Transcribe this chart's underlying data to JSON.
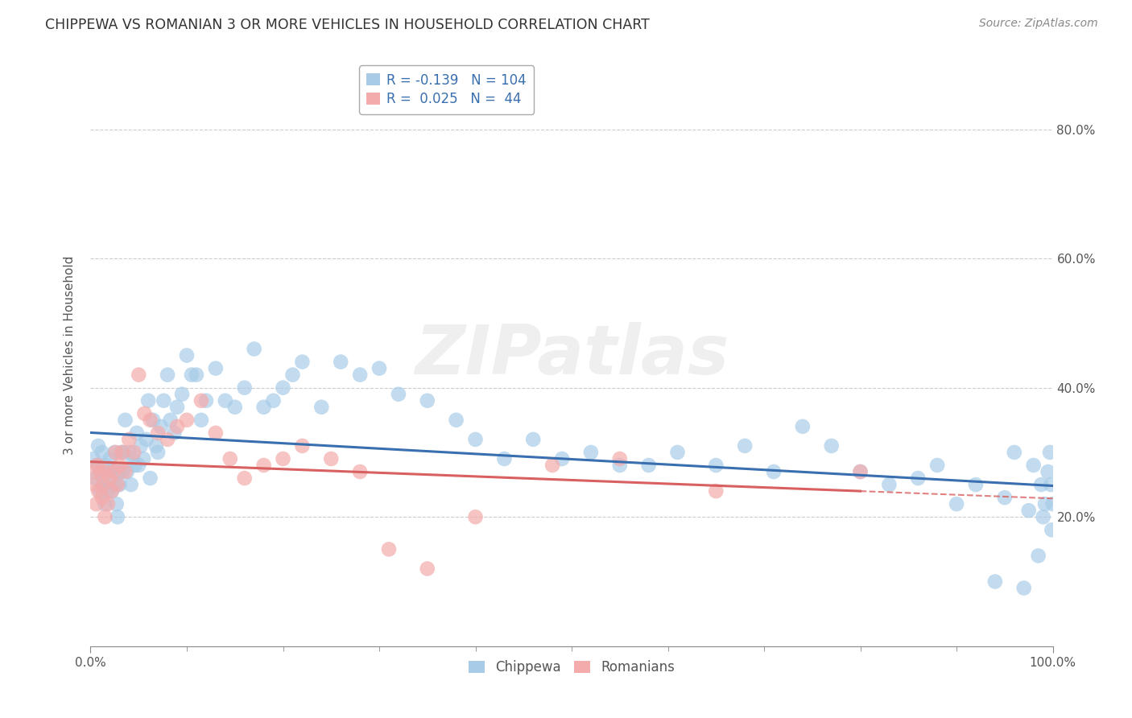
{
  "title": "CHIPPEWA VS ROMANIAN 3 OR MORE VEHICLES IN HOUSEHOLD CORRELATION CHART",
  "source": "Source: ZipAtlas.com",
  "ylabel": "3 or more Vehicles in Household",
  "xlim": [
    0.0,
    1.0
  ],
  "ylim": [
    0.0,
    0.9
  ],
  "xticks": [
    0.0,
    1.0
  ],
  "xtick_labels": [
    "0.0%",
    "100.0%"
  ],
  "yticks": [
    0.2,
    0.4,
    0.6,
    0.8
  ],
  "ytick_labels": [
    "20.0%",
    "40.0%",
    "60.0%",
    "80.0%"
  ],
  "chippewa_R": "-0.139",
  "chippewa_N": "104",
  "romanian_R": "0.025",
  "romanian_N": "44",
  "chippewa_color": "#A8CCE8",
  "romanian_color": "#F4ABAB",
  "chippewa_line_color": "#3A6FAF",
  "romanian_line_color": "#D96060",
  "watermark": "ZIPatlas",
  "chippewa_x": [
    0.003,
    0.005,
    0.007,
    0.008,
    0.01,
    0.01,
    0.012,
    0.013,
    0.015,
    0.015,
    0.016,
    0.018,
    0.019,
    0.02,
    0.022,
    0.025,
    0.025,
    0.026,
    0.027,
    0.028,
    0.029,
    0.03,
    0.032,
    0.033,
    0.034,
    0.036,
    0.038,
    0.04,
    0.042,
    0.044,
    0.046,
    0.048,
    0.05,
    0.052,
    0.055,
    0.058,
    0.06,
    0.062,
    0.065,
    0.068,
    0.07,
    0.073,
    0.076,
    0.08,
    0.083,
    0.087,
    0.09,
    0.095,
    0.1,
    0.105,
    0.11,
    0.115,
    0.12,
    0.13,
    0.14,
    0.15,
    0.16,
    0.17,
    0.18,
    0.19,
    0.2,
    0.21,
    0.22,
    0.24,
    0.26,
    0.28,
    0.3,
    0.32,
    0.35,
    0.38,
    0.4,
    0.43,
    0.46,
    0.49,
    0.52,
    0.55,
    0.58,
    0.61,
    0.65,
    0.68,
    0.71,
    0.74,
    0.77,
    0.8,
    0.83,
    0.86,
    0.88,
    0.9,
    0.92,
    0.94,
    0.95,
    0.96,
    0.97,
    0.975,
    0.98,
    0.985,
    0.988,
    0.99,
    0.992,
    0.995,
    0.997,
    0.998,
    0.999,
    1.0
  ],
  "chippewa_y": [
    0.29,
    0.26,
    0.28,
    0.31,
    0.24,
    0.27,
    0.3,
    0.26,
    0.22,
    0.25,
    0.28,
    0.24,
    0.27,
    0.29,
    0.24,
    0.27,
    0.3,
    0.25,
    0.22,
    0.2,
    0.27,
    0.25,
    0.3,
    0.27,
    0.3,
    0.35,
    0.27,
    0.3,
    0.25,
    0.29,
    0.28,
    0.33,
    0.28,
    0.31,
    0.29,
    0.32,
    0.38,
    0.26,
    0.35,
    0.31,
    0.3,
    0.34,
    0.38,
    0.42,
    0.35,
    0.33,
    0.37,
    0.39,
    0.45,
    0.42,
    0.42,
    0.35,
    0.38,
    0.43,
    0.38,
    0.37,
    0.4,
    0.46,
    0.37,
    0.38,
    0.4,
    0.42,
    0.44,
    0.37,
    0.44,
    0.42,
    0.43,
    0.39,
    0.38,
    0.35,
    0.32,
    0.29,
    0.32,
    0.29,
    0.3,
    0.28,
    0.28,
    0.3,
    0.28,
    0.31,
    0.27,
    0.34,
    0.31,
    0.27,
    0.25,
    0.26,
    0.28,
    0.22,
    0.25,
    0.1,
    0.23,
    0.3,
    0.09,
    0.21,
    0.28,
    0.14,
    0.25,
    0.2,
    0.22,
    0.27,
    0.3,
    0.25,
    0.18,
    0.22
  ],
  "romanian_x": [
    0.003,
    0.005,
    0.006,
    0.007,
    0.008,
    0.01,
    0.012,
    0.013,
    0.015,
    0.016,
    0.018,
    0.02,
    0.022,
    0.024,
    0.026,
    0.028,
    0.03,
    0.033,
    0.036,
    0.04,
    0.045,
    0.05,
    0.056,
    0.062,
    0.07,
    0.08,
    0.09,
    0.1,
    0.115,
    0.13,
    0.145,
    0.16,
    0.18,
    0.2,
    0.22,
    0.25,
    0.28,
    0.31,
    0.35,
    0.4,
    0.48,
    0.55,
    0.65,
    0.8
  ],
  "romanian_y": [
    0.27,
    0.25,
    0.22,
    0.28,
    0.24,
    0.27,
    0.23,
    0.25,
    0.2,
    0.27,
    0.22,
    0.26,
    0.24,
    0.27,
    0.3,
    0.25,
    0.28,
    0.3,
    0.27,
    0.32,
    0.3,
    0.42,
    0.36,
    0.35,
    0.33,
    0.32,
    0.34,
    0.35,
    0.38,
    0.33,
    0.29,
    0.26,
    0.28,
    0.29,
    0.31,
    0.29,
    0.27,
    0.15,
    0.12,
    0.2,
    0.28,
    0.29,
    0.24,
    0.27
  ],
  "background_color": "#ffffff",
  "grid_color": "#cccccc",
  "title_color": "#333333",
  "axis_label_color": "#555555",
  "legend_R_color_chip": "#3A6FAF",
  "legend_R_color_rom": "#D96060",
  "legend_N_color": "#3A6FAF"
}
